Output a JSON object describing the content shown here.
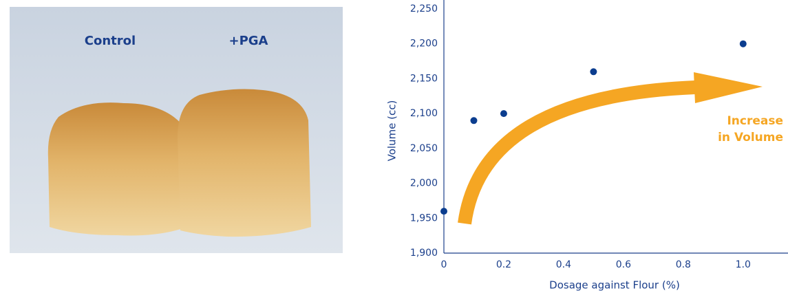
{
  "photo": {
    "labels": [
      "Control",
      "+PGA"
    ]
  },
  "chart_data": {
    "type": "scatter",
    "x_label": "Dosage against Flour (%)",
    "y_label": "Volume (cc)",
    "annotation": [
      "Increase",
      "in Volume"
    ],
    "x": [
      0,
      0.1,
      0.2,
      0.5,
      1.0
    ],
    "values": [
      1960,
      2090,
      2100,
      2160,
      2200
    ],
    "color": "#0b3d8f",
    "xlim": [
      0,
      1.15
    ],
    "ylim": [
      1900,
      2250
    ],
    "xticks": [
      0,
      0.2,
      0.4,
      0.6,
      0.8,
      {
        "value": 1,
        "label": "1.0"
      }
    ],
    "yticks": [
      {
        "value": 1900,
        "label": "1,900"
      },
      {
        "value": 1950,
        "label": "1,950"
      },
      {
        "value": 2000,
        "label": "2,000"
      },
      {
        "value": 2050,
        "label": "2,050"
      },
      {
        "value": 2100,
        "label": "2,100"
      },
      {
        "value": 2150,
        "label": "2,150"
      },
      {
        "value": 2200,
        "label": "2,200"
      },
      {
        "value": 2250,
        "label": "2,250"
      }
    ]
  }
}
